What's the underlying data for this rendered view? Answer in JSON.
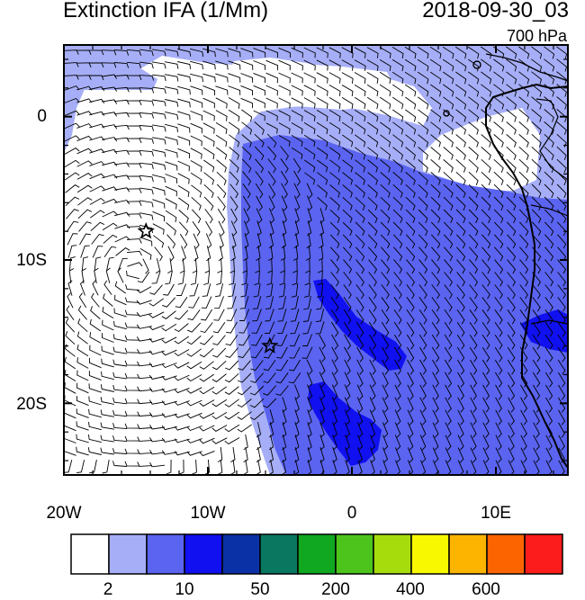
{
  "title": "Extinction IFA (1/Mm)",
  "datetime": "2018-09-30_03",
  "level": "700 hPa",
  "lat_labels": [
    "0",
    "10S",
    "20S"
  ],
  "lon_labels": [
    "20W",
    "10W",
    "0",
    "10E"
  ],
  "colorbar": {
    "colors": [
      "#ffffff",
      "#a6aef7",
      "#5a64f0",
      "#1010f0",
      "#0a32a6",
      "#0a7860",
      "#10a820",
      "#4cc41c",
      "#a6dc0c",
      "#f8f800",
      "#fcb400",
      "#fc6400",
      "#fc1c1c"
    ],
    "tick_labels": [
      "2",
      "10",
      "50",
      "200",
      "400",
      "600"
    ]
  },
  "map_data": {
    "lon_range": [
      -20,
      15
    ],
    "lat_range": [
      -25,
      5
    ],
    "markers": [
      {
        "type": "star",
        "lon": -14.3,
        "lat": -8.0
      },
      {
        "type": "star",
        "lon": -5.7,
        "lat": -16.0
      }
    ]
  }
}
